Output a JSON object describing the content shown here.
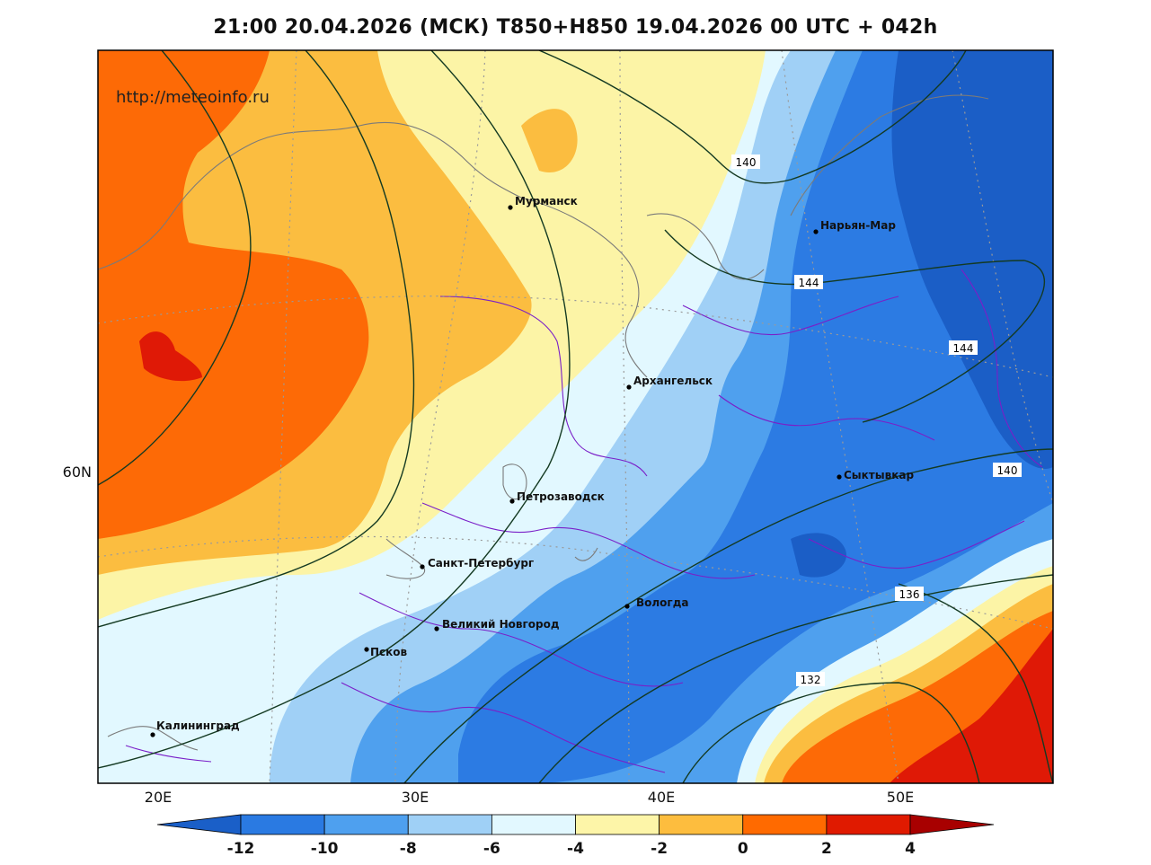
{
  "title": "21:00 20.04.2026 (МСК) T850+H850 19.04.2026 00 UTC + 042h",
  "watermark": "http://meteoinfo.ru",
  "axes": {
    "lon_ticks": [
      "20E",
      "30E",
      "40E",
      "50E"
    ],
    "lat_ticks": [
      "60N"
    ]
  },
  "cities": [
    {
      "name": "Мурманск"
    },
    {
      "name": "Нарьян-Мар"
    },
    {
      "name": "Архангельск"
    },
    {
      "name": "Сыктывкар"
    },
    {
      "name": "Петрозаводск"
    },
    {
      "name": "Санкт-Петербург"
    },
    {
      "name": "Вологда"
    },
    {
      "name": "Великий Новгород"
    },
    {
      "name": "Псков"
    },
    {
      "name": "Калининград"
    }
  ],
  "contour_labels": [
    "140",
    "144",
    "144",
    "140",
    "136",
    "132"
  ],
  "colorbar": {
    "ticks": [
      "-12",
      "-10",
      "-8",
      "-6",
      "-4",
      "-2",
      "0",
      "2",
      "4"
    ],
    "colors": [
      "#1a5fc8",
      "#2a7ae2",
      "#4ea0ef",
      "#9fd0f6",
      "#e2f8ff",
      "#fdf5a8",
      "#fdbd3e",
      "#ff6a00",
      "#e01a00",
      "#a80000"
    ]
  },
  "field_colors": {
    "t_minus12": "#1b5ec6",
    "t_minus10": "#2c7be3",
    "t_minus8": "#4fa0ee",
    "t_minus6": "#a0d0f6",
    "t_minus4": "#e2f8ff",
    "t_minus2": "#fcf4a6",
    "t_0": "#fbbd40",
    "t_2": "#fd6a06",
    "t_4": "#df1906"
  }
}
